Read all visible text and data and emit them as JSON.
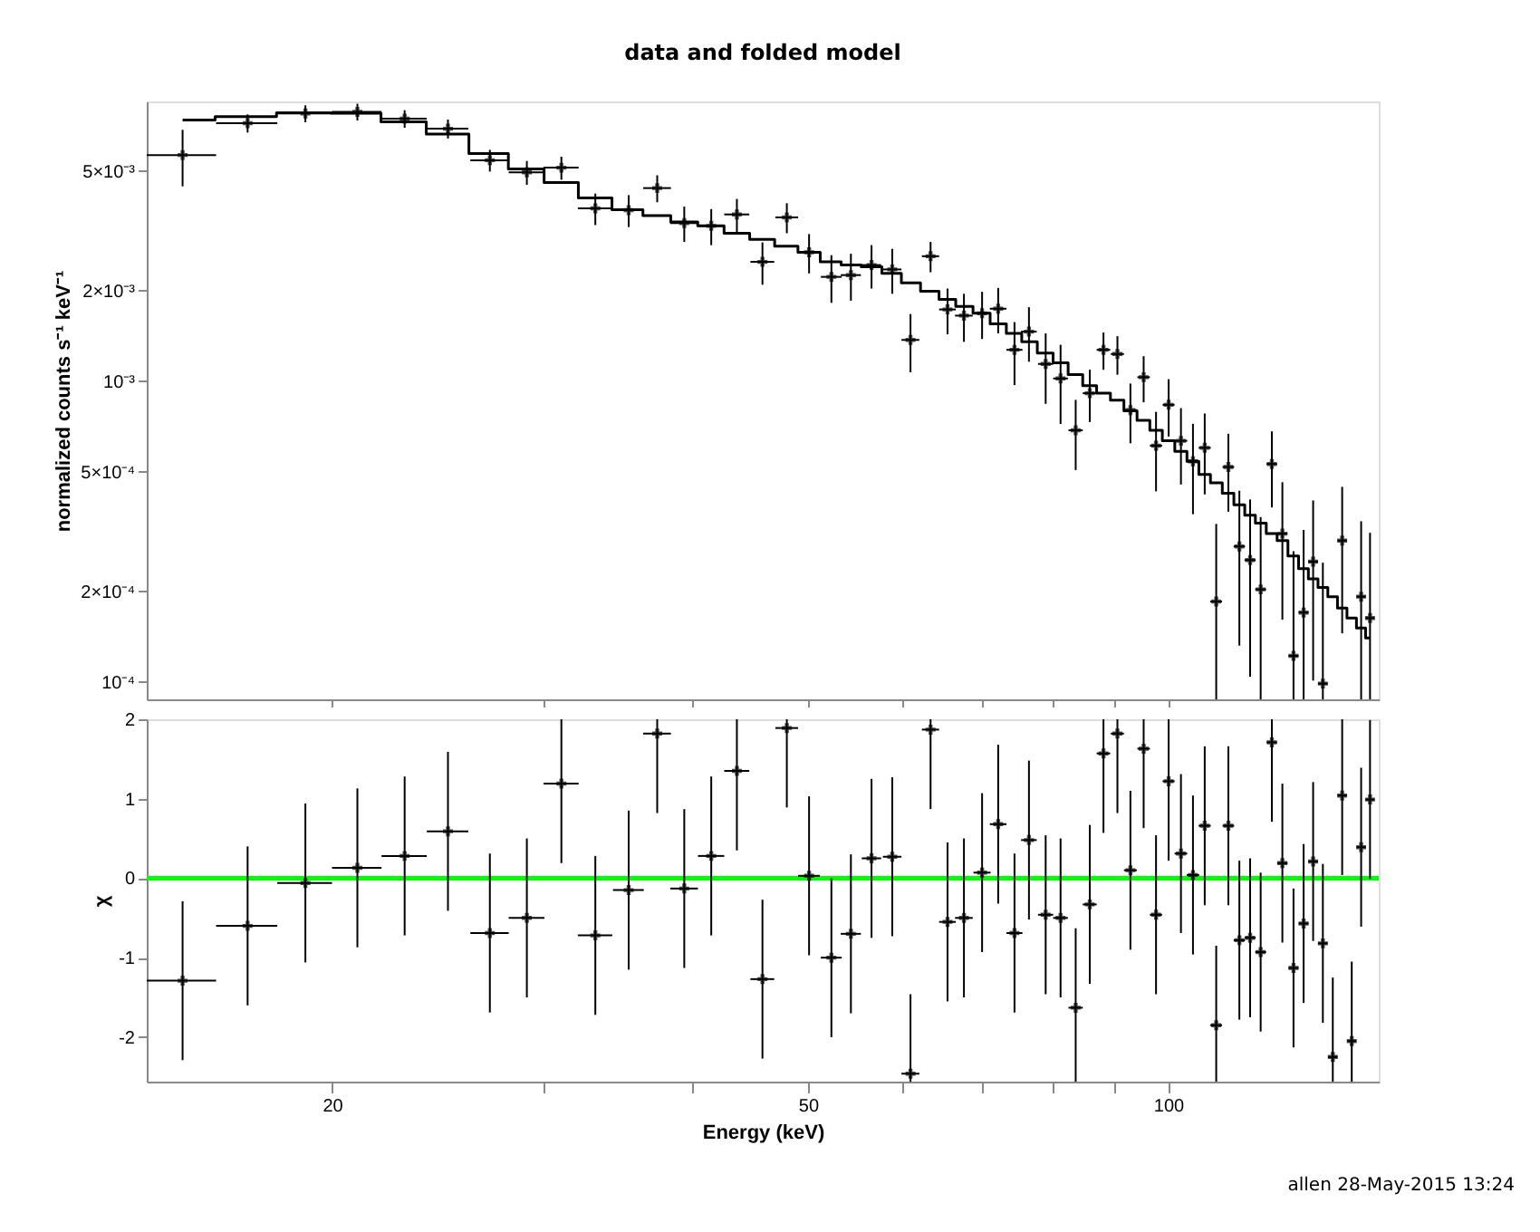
{
  "chart_data": [
    {
      "type": "scatter",
      "title": "data and folded model",
      "ylabel": "normalized counts s⁻¹ keV⁻¹",
      "log": "xy",
      "tick_labels": "y",
      "xlim": [
        14,
        150
      ],
      "xticks": [
        20,
        50,
        100,
        {
          "value": 30,
          "label": null
        },
        {
          "value": 40,
          "label": null
        },
        {
          "value": 60,
          "label": null
        },
        {
          "value": 70,
          "label": null
        },
        {
          "value": 80,
          "label": null
        },
        {
          "value": 90,
          "label": null
        }
      ],
      "ylim": [
        8.75e-05,
        0.0085
      ],
      "yticks": [
        {
          "value": 0.0001,
          "label": "10⁻⁴"
        },
        {
          "value": 0.0002,
          "label": "2×10⁻⁴"
        },
        {
          "value": 0.0005,
          "label": "5×10⁻⁴"
        },
        {
          "value": 0.001,
          "label": "10⁻³"
        },
        {
          "value": 0.002,
          "label": "2×10⁻³"
        },
        {
          "value": 0.005,
          "label": "5×10⁻³"
        }
      ],
      "x": [
        15,
        17,
        19,
        21,
        23,
        25,
        27.1,
        29.1,
        31.1,
        33.2,
        35.4,
        37.4,
        39.4,
        41.5,
        43.6,
        45.8,
        48.0,
        50.1,
        52.3,
        54.3,
        56.5,
        58.8,
        60.9,
        63.3,
        65.4,
        67.5,
        69.9,
        72.1,
        74.4,
        76.5,
        79.0,
        81.3,
        83.7,
        86.0,
        88.3,
        90.7,
        93.0,
        95.4,
        97.7,
        100.1,
        102.5,
        104.9,
        107.3,
        109.7,
        112.3,
        114.7,
        117.1,
        119.5,
        122.1,
        124.6,
        127.3,
        129.8,
        132.2,
        134.7,
        137.3,
        139.8,
        142.4,
        145.0,
        147.5
      ],
      "series": [
        {
          "color": "#000000",
          "marker": "cross",
          "values": [
            0.00564,
            0.0072,
            0.00775,
            0.00785,
            0.00745,
            0.0069,
            0.00542,
            0.00494,
            0.00512,
            0.00375,
            0.0037,
            0.00438,
            0.00335,
            0.00328,
            0.00358,
            0.00249,
            0.0035,
            0.00268,
            0.00222,
            0.00225,
            0.00243,
            0.00235,
            0.00137,
            0.0026,
            0.00173,
            0.00165,
            0.00168,
            0.00174,
            0.00127,
            0.00146,
            0.00114,
            0.00102,
            0.000686,
            0.000911,
            0.00127,
            0.00123,
            0.000801,
            0.00103,
            0.00061,
            0.000834,
            0.000633,
            0.000541,
            0.0006,
            0.000185,
            0.000518,
            0.000282,
            0.000254,
            0.000203,
            0.00053,
            0.000311,
            0.000122,
            0.00017,
            0.000251,
            9.87e-05,
            null,
            0.000295,
            null,
            0.000192,
            0.000163
          ],
          "errors": [
            0.0012,
            0.0005,
            0.0005,
            0.0005,
            0.0005,
            0.0005,
            0.00045,
            0.00045,
            0.00045,
            0.00045,
            0.00045,
            0.00045,
            0.00045,
            0.00045,
            0.00045,
            0.0004,
            0.0004,
            0.0004,
            0.0004,
            0.0004,
            0.0004,
            0.0004,
            0.0003,
            0.0003,
            0.0003,
            0.0003,
            0.0003,
            0.0003,
            0.0003,
            0.0003,
            0.0003,
            0.0003,
            0.00018,
            0.00018,
            0.00018,
            0.00018,
            0.00018,
            0.00018,
            0.00018,
            0.00018,
            0.00018,
            0.00018,
            0.00018,
            [
              8.75e-05,
              0.000335
            ],
            0.00015,
            0.00015,
            0.00015,
            [
              8.75e-05,
              0.000353
            ],
            0.00015,
            0.00015,
            [
              8.75e-05,
              0.000272
            ],
            [
              8.75e-05,
              0.00032
            ],
            0.00015,
            [
              8.75e-05,
              0.000249
            ],
            null,
            0.00015,
            null,
            [
              8.75e-05,
              0.000342
            ],
            [
              8.75e-05,
              0.000313
            ]
          ],
          "xerrors": [
            1,
            1,
            1,
            1,
            1,
            1,
            1,
            1,
            1.05,
            1.1,
            1.05,
            1,
            1.05,
            1.05,
            1.05,
            1.05,
            1.05,
            1.05,
            1.05,
            1.05,
            1.05,
            1.05,
            1.05,
            1.05,
            1.05,
            1.15,
            1.15,
            1.15,
            1.15,
            1.15,
            1.15,
            1.15,
            1.15,
            1.15,
            1.15,
            1.15,
            1.15,
            1.15,
            1.15,
            1.15,
            1.25,
            1.25,
            1.25,
            1.25,
            1.25,
            1.25,
            1.25,
            1.25,
            1.25,
            1.25,
            1.25,
            1.25,
            1.25,
            1.25,
            null,
            1.25,
            null,
            1.25,
            1.25
          ]
        },
        {
          "type": "step",
          "color": "#000000",
          "values": [
            0.00737,
            0.00757,
            0.0078,
            0.00777,
            0.00727,
            0.00662,
            0.00571,
            0.00507,
            0.00457,
            0.00406,
            0.00371,
            0.00355,
            0.00338,
            0.00328,
            0.0031,
            0.00296,
            0.00281,
            0.00268,
            0.00249,
            0.00243,
            0.0024,
            0.00228,
            0.00212,
            0.00199,
            0.00187,
            0.00177,
            0.00168,
            0.00155,
            0.00144,
            0.00135,
            0.00124,
            0.00115,
            0.00105,
            0.000966,
            0.000911,
            0.000864,
            0.000797,
            0.00074,
            0.000686,
            0.000633,
            0.000584,
            0.000541,
            0.000489,
            0.000459,
            0.000424,
            0.000388,
            0.000358,
            0.000337,
            0.000311,
            0.000295,
            0.000262,
            0.000238,
            0.00022,
            0.000206,
            0.000192,
            0.000176,
            0.000163,
            0.000151,
            0.00014
          ]
        }
      ]
    },
    {
      "type": "scatter",
      "xlabel": "Energy (keV)",
      "ylabel": "χ",
      "log": "x",
      "xlim": [
        14,
        150
      ],
      "xticks": [
        20,
        50,
        100,
        {
          "value": 30,
          "label": null
        },
        {
          "value": 40,
          "label": null
        },
        {
          "value": 60,
          "label": null
        },
        {
          "value": 70,
          "label": null
        },
        {
          "value": 80,
          "label": null
        },
        {
          "value": 90,
          "label": null
        }
      ],
      "ylim": [
        -2.56,
        2
      ],
      "yticks": [
        -2,
        -1,
        0,
        1,
        2
      ],
      "ref_lines": [
        {
          "axis": "y",
          "value": 0,
          "color": "#00ff00"
        }
      ],
      "annotations": [
        "allen 28-May-2015 13:24"
      ],
      "x": [
        15,
        17,
        19,
        21,
        23,
        25,
        27.1,
        29.1,
        31.1,
        33.2,
        35.4,
        37.4,
        39.4,
        41.5,
        43.6,
        45.8,
        48.0,
        50.1,
        52.3,
        54.3,
        56.5,
        58.8,
        60.9,
        63.3,
        65.4,
        67.5,
        69.9,
        72.1,
        74.4,
        76.5,
        79.0,
        81.3,
        83.7,
        86.0,
        88.3,
        90.7,
        93.0,
        95.4,
        97.7,
        100.1,
        102.5,
        104.9,
        107.3,
        109.7,
        112.3,
        114.7,
        117.1,
        119.5,
        122.1,
        124.6,
        127.3,
        129.8,
        132.2,
        134.7,
        137.3,
        139.8,
        142.4,
        145.0,
        147.5
      ],
      "series": [
        {
          "color": "#000000",
          "marker": "cross",
          "values": [
            -1.29,
            -0.6,
            -0.06,
            0.13,
            0.28,
            0.59,
            -0.69,
            -0.5,
            1.19,
            -0.72,
            -0.15,
            1.82,
            -0.13,
            0.28,
            1.35,
            -1.27,
            1.89,
            0.03,
            -1.0,
            -0.7,
            0.25,
            0.27,
            -2.46,
            1.87,
            -0.55,
            -0.5,
            0.07,
            0.68,
            -0.69,
            0.48,
            -0.46,
            -0.5,
            -1.63,
            -0.33,
            1.57,
            1.82,
            0.1,
            1.63,
            -0.46,
            1.22,
            0.31,
            0.04,
            0.66,
            -1.85,
            0.66,
            -0.78,
            -0.75,
            -0.93,
            1.71,
            0.19,
            -1.13,
            -0.57,
            0.21,
            -0.82,
            -2.25,
            1.04,
            -2.05,
            0.39,
            0.99
          ],
          "errors": [
            1,
            1,
            1,
            1,
            1,
            1,
            1,
            1,
            1,
            1,
            1,
            1,
            1,
            1,
            1,
            1,
            1,
            1,
            1,
            1,
            1,
            1,
            1,
            1,
            1,
            1,
            1,
            1,
            1,
            1,
            1,
            1,
            1,
            1,
            1,
            1,
            1,
            1,
            1,
            1,
            1,
            1,
            1,
            1,
            1,
            1,
            1,
            1,
            1,
            1,
            1,
            1,
            1,
            1,
            1,
            1,
            1,
            1,
            1
          ],
          "xerrors": [
            1,
            1,
            1,
            1,
            1,
            1,
            1,
            1,
            1.05,
            1.1,
            1.05,
            1,
            1.05,
            1.05,
            1.05,
            1.05,
            1.05,
            1.05,
            1.05,
            1.05,
            1.05,
            1.05,
            1.05,
            1.05,
            1.05,
            1.15,
            1.15,
            1.15,
            1.15,
            1.15,
            1.15,
            1.15,
            1.15,
            1.15,
            1.15,
            1.15,
            1.15,
            1.15,
            1.15,
            1.15,
            1.25,
            1.25,
            1.25,
            1.25,
            1.25,
            1.25,
            1.25,
            1.25,
            1.25,
            1.25,
            1.25,
            1.25,
            1.25,
            1.25,
            1.25,
            1.25,
            1.25,
            1.25,
            1.25
          ]
        }
      ]
    }
  ]
}
